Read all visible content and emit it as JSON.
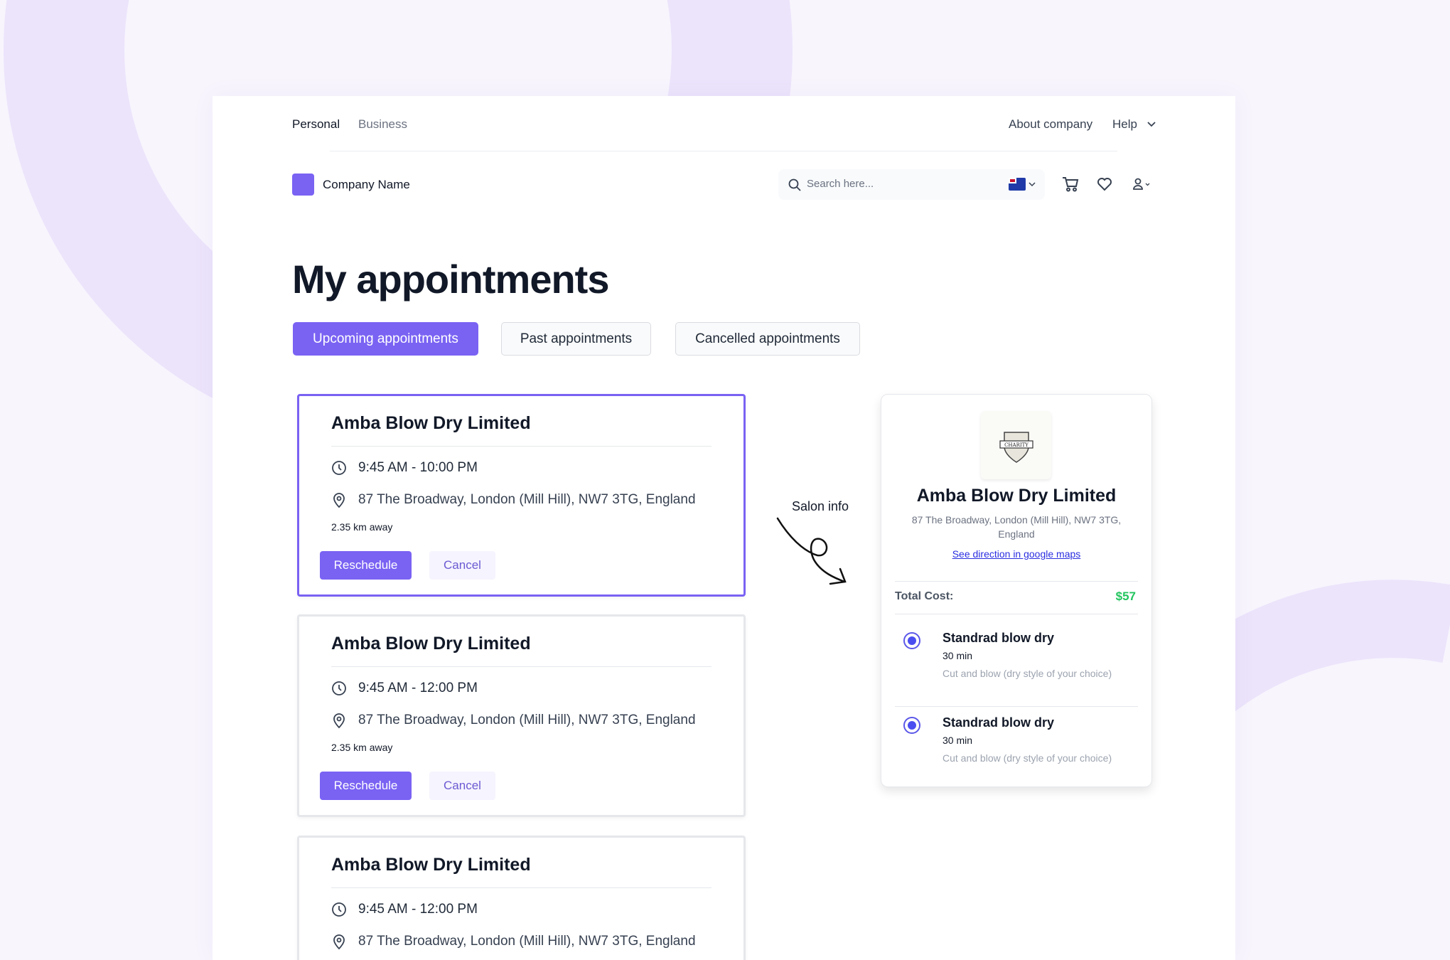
{
  "topnav": {
    "personal": "Personal",
    "business": "Business",
    "about": "About company",
    "help": "Help"
  },
  "header": {
    "company_name": "Company Name",
    "search_placeholder": "Search here...",
    "flag": "australia-flag",
    "brand_color": "#7a62f3"
  },
  "page_title": "My appointments",
  "tabs": [
    {
      "label": "Upcoming appointments",
      "active": true
    },
    {
      "label": "Past appointments",
      "active": false
    },
    {
      "label": "Cancelled appointments",
      "active": false
    }
  ],
  "appointments": [
    {
      "name": "Amba Blow Dry Limited",
      "time": "9:45 AM - 10:00 PM",
      "address": "87 The Broadway, London (Mill Hill), NW7 3TG, England",
      "distance": "2.35 km away",
      "reschedule": "Reschedule",
      "cancel": "Cancel"
    },
    {
      "name": "Amba Blow Dry Limited",
      "time": "9:45 AM - 12:00 PM",
      "address": "87 The Broadway, London (Mill Hill), NW7 3TG, England",
      "distance": "2.35 km away",
      "reschedule": "Reschedule",
      "cancel": "Cancel"
    },
    {
      "name": "Amba Blow Dry Limited",
      "time": "9:45 AM - 12:00 PM",
      "address": "87 The Broadway, London (Mill Hill), NW7 3TG, England"
    }
  ],
  "annotation": "Salon info",
  "salon": {
    "logo_text": "CHARITY",
    "name": "Amba Blow Dry Limited",
    "address_line1": "87 The Broadway, London (Mill Hill), NW7 3TG,",
    "address_line2": "England",
    "map_link": "See direction in google maps",
    "total_label": "Total Cost:",
    "total_value": "$57",
    "total_color": "#22c55e",
    "services": [
      {
        "title": "Standrad blow dry",
        "duration": "30 min",
        "desc": "Cut and blow (dry style of your choice)",
        "selected": true
      },
      {
        "title": "Standrad blow dry",
        "duration": "30 min",
        "desc": "Cut and blow (dry style of your choice)",
        "selected": true
      }
    ]
  }
}
